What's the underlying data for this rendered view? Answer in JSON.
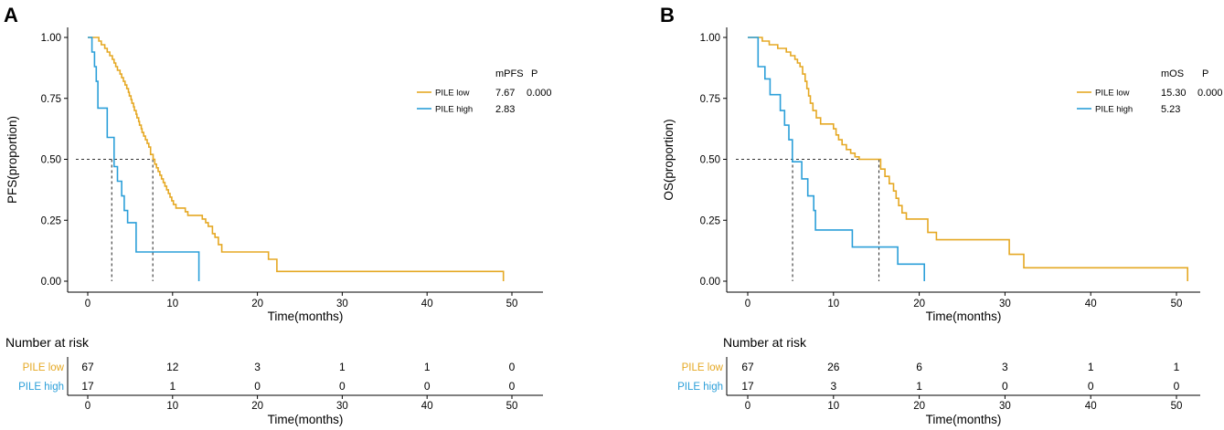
{
  "colors": {
    "low": "#E5A823",
    "high": "#2B9FD9",
    "axis": "#000000"
  },
  "chart_data": [
    {
      "type": "line",
      "panel_label": "A",
      "title": "",
      "xlabel": "Time(months)",
      "ylabel": "PFS(proportion)",
      "xlim": [
        0,
        50
      ],
      "ylim": [
        0,
        1
      ],
      "x_ticks": [
        "0",
        "10",
        "20",
        "30",
        "40",
        "50"
      ],
      "y_ticks": [
        "0.00",
        "0.25",
        "0.50",
        "0.75",
        "1.00"
      ],
      "legend": {
        "metric_header": "mPFS",
        "p_header": "P",
        "p_value": "0.000",
        "entries": [
          {
            "label": "PILE low",
            "value": "7.67"
          },
          {
            "label": "PILE high",
            "value": "2.83"
          }
        ]
      },
      "medians": [
        2.83,
        7.67
      ],
      "series": [
        {
          "name": "PILE low",
          "color_key": "low",
          "points": [
            [
              0,
              1
            ],
            [
              1,
              1
            ],
            [
              1.3,
              0.985
            ],
            [
              1.6,
              0.97
            ],
            [
              2,
              0.955
            ],
            [
              2.3,
              0.94
            ],
            [
              2.6,
              0.925
            ],
            [
              2.9,
              0.91
            ],
            [
              3.1,
              0.895
            ],
            [
              3.3,
              0.88
            ],
            [
              3.5,
              0.865
            ],
            [
              3.8,
              0.85
            ],
            [
              4.0,
              0.835
            ],
            [
              4.2,
              0.82
            ],
            [
              4.4,
              0.805
            ],
            [
              4.6,
              0.79
            ],
            [
              4.8,
              0.775
            ],
            [
              4.9,
              0.76
            ],
            [
              5.1,
              0.745
            ],
            [
              5.2,
              0.73
            ],
            [
              5.4,
              0.715
            ],
            [
              5.5,
              0.7
            ],
            [
              5.7,
              0.685
            ],
            [
              5.8,
              0.67
            ],
            [
              6.0,
              0.655
            ],
            [
              6.1,
              0.64
            ],
            [
              6.3,
              0.625
            ],
            [
              6.4,
              0.61
            ],
            [
              6.6,
              0.595
            ],
            [
              6.8,
              0.58
            ],
            [
              7.0,
              0.565
            ],
            [
              7.2,
              0.55
            ],
            [
              7.4,
              0.52
            ],
            [
              7.7,
              0.5
            ],
            [
              7.9,
              0.48
            ],
            [
              8.1,
              0.465
            ],
            [
              8.3,
              0.45
            ],
            [
              8.5,
              0.435
            ],
            [
              8.7,
              0.42
            ],
            [
              8.9,
              0.405
            ],
            [
              9.1,
              0.39
            ],
            [
              9.3,
              0.375
            ],
            [
              9.5,
              0.36
            ],
            [
              9.7,
              0.345
            ],
            [
              9.9,
              0.33
            ],
            [
              10.1,
              0.315
            ],
            [
              10.4,
              0.3
            ],
            [
              11.5,
              0.285
            ],
            [
              11.8,
              0.27
            ],
            [
              13.5,
              0.255
            ],
            [
              13.9,
              0.24
            ],
            [
              14.2,
              0.225
            ],
            [
              14.7,
              0.195
            ],
            [
              15.0,
              0.18
            ],
            [
              15.4,
              0.15
            ],
            [
              15.8,
              0.12
            ],
            [
              21.3,
              0.09
            ],
            [
              22.3,
              0.04
            ],
            [
              49,
              0.04
            ],
            [
              49,
              0
            ]
          ]
        },
        {
          "name": "PILE high",
          "color_key": "high",
          "points": [
            [
              0,
              1
            ],
            [
              0.5,
              1
            ],
            [
              0.5,
              0.94
            ],
            [
              0.8,
              0.88
            ],
            [
              1,
              0.82
            ],
            [
              1.2,
              0.71
            ],
            [
              2.2,
              0.71
            ],
            [
              2.3,
              0.59
            ],
            [
              3.1,
              0.59
            ],
            [
              3.1,
              0.47
            ],
            [
              3.5,
              0.41
            ],
            [
              4.0,
              0.35
            ],
            [
              4.3,
              0.29
            ],
            [
              4.7,
              0.24
            ],
            [
              5.5,
              0.24
            ],
            [
              5.7,
              0.12
            ],
            [
              13.1,
              0.12
            ],
            [
              13.1,
              0
            ]
          ]
        }
      ],
      "risk_table": {
        "title": "Number at risk",
        "rows": [
          {
            "label": "PILE low",
            "color_key": "low",
            "values": [
              "67",
              "12",
              "3",
              "1",
              "1",
              "0"
            ]
          },
          {
            "label": "PILE high",
            "color_key": "high",
            "values": [
              "17",
              "1",
              "0",
              "0",
              "0",
              "0"
            ]
          }
        ],
        "x_ticks": [
          "0",
          "10",
          "20",
          "30",
          "40",
          "50"
        ],
        "xlabel": "Time(months)"
      }
    },
    {
      "type": "line",
      "panel_label": "B",
      "title": "",
      "xlabel": "Time(months)",
      "ylabel": "OS(proportion)",
      "xlim": [
        0,
        50
      ],
      "ylim": [
        0,
        1
      ],
      "x_ticks": [
        "0",
        "10",
        "20",
        "30",
        "40",
        "50"
      ],
      "y_ticks": [
        "0.00",
        "0.25",
        "0.50",
        "0.75",
        "1.00"
      ],
      "legend": {
        "metric_header": "mOS",
        "p_header": "P",
        "p_value": "0.000",
        "entries": [
          {
            "label": "PILE low",
            "value": "15.30"
          },
          {
            "label": "PILE high",
            "value": "5.23"
          }
        ]
      },
      "medians": [
        5.23,
        15.3
      ],
      "series": [
        {
          "name": "PILE low",
          "color_key": "low",
          "points": [
            [
              0,
              1
            ],
            [
              1.5,
              1
            ],
            [
              1.7,
              0.985
            ],
            [
              2.5,
              0.97
            ],
            [
              3.5,
              0.955
            ],
            [
              4.5,
              0.94
            ],
            [
              5,
              0.925
            ],
            [
              5.5,
              0.91
            ],
            [
              5.8,
              0.895
            ],
            [
              6.1,
              0.88
            ],
            [
              6.4,
              0.85
            ],
            [
              6.7,
              0.82
            ],
            [
              6.9,
              0.79
            ],
            [
              7.1,
              0.76
            ],
            [
              7.3,
              0.73
            ],
            [
              7.6,
              0.7
            ],
            [
              8,
              0.67
            ],
            [
              8.5,
              0.645
            ],
            [
              10,
              0.625
            ],
            [
              10.3,
              0.6
            ],
            [
              10.6,
              0.58
            ],
            [
              11,
              0.56
            ],
            [
              11.5,
              0.54
            ],
            [
              12,
              0.525
            ],
            [
              12.5,
              0.51
            ],
            [
              13,
              0.5
            ],
            [
              15.3,
              0.5
            ],
            [
              15.5,
              0.46
            ],
            [
              16,
              0.43
            ],
            [
              16.5,
              0.4
            ],
            [
              17,
              0.37
            ],
            [
              17.3,
              0.34
            ],
            [
              17.6,
              0.31
            ],
            [
              18,
              0.28
            ],
            [
              18.5,
              0.255
            ],
            [
              21,
              0.2
            ],
            [
              22,
              0.17
            ],
            [
              30.5,
              0.11
            ],
            [
              32.2,
              0.055
            ],
            [
              51.3,
              0.055
            ],
            [
              51.3,
              0
            ]
          ]
        },
        {
          "name": "PILE high",
          "color_key": "high",
          "points": [
            [
              0,
              1
            ],
            [
              1,
              1
            ],
            [
              1.2,
              0.88
            ],
            [
              2,
              0.83
            ],
            [
              2.6,
              0.765
            ],
            [
              3.8,
              0.7
            ],
            [
              4.3,
              0.64
            ],
            [
              4.8,
              0.58
            ],
            [
              5.2,
              0.49
            ],
            [
              6.3,
              0.42
            ],
            [
              7,
              0.35
            ],
            [
              7.7,
              0.29
            ],
            [
              7.9,
              0.21
            ],
            [
              12.1,
              0.21
            ],
            [
              12.2,
              0.14
            ],
            [
              17.3,
              0.14
            ],
            [
              17.5,
              0.07
            ],
            [
              20.6,
              0.07
            ],
            [
              20.6,
              0
            ]
          ]
        }
      ],
      "risk_table": {
        "title": "Number at risk",
        "rows": [
          {
            "label": "PILE low",
            "color_key": "low",
            "values": [
              "67",
              "26",
              "6",
              "3",
              "1",
              "1"
            ]
          },
          {
            "label": "PILE high",
            "color_key": "high",
            "values": [
              "17",
              "3",
              "1",
              "0",
              "0",
              "0"
            ]
          }
        ],
        "x_ticks": [
          "0",
          "10",
          "20",
          "30",
          "40",
          "50"
        ],
        "xlabel": "Time(months)"
      }
    }
  ]
}
